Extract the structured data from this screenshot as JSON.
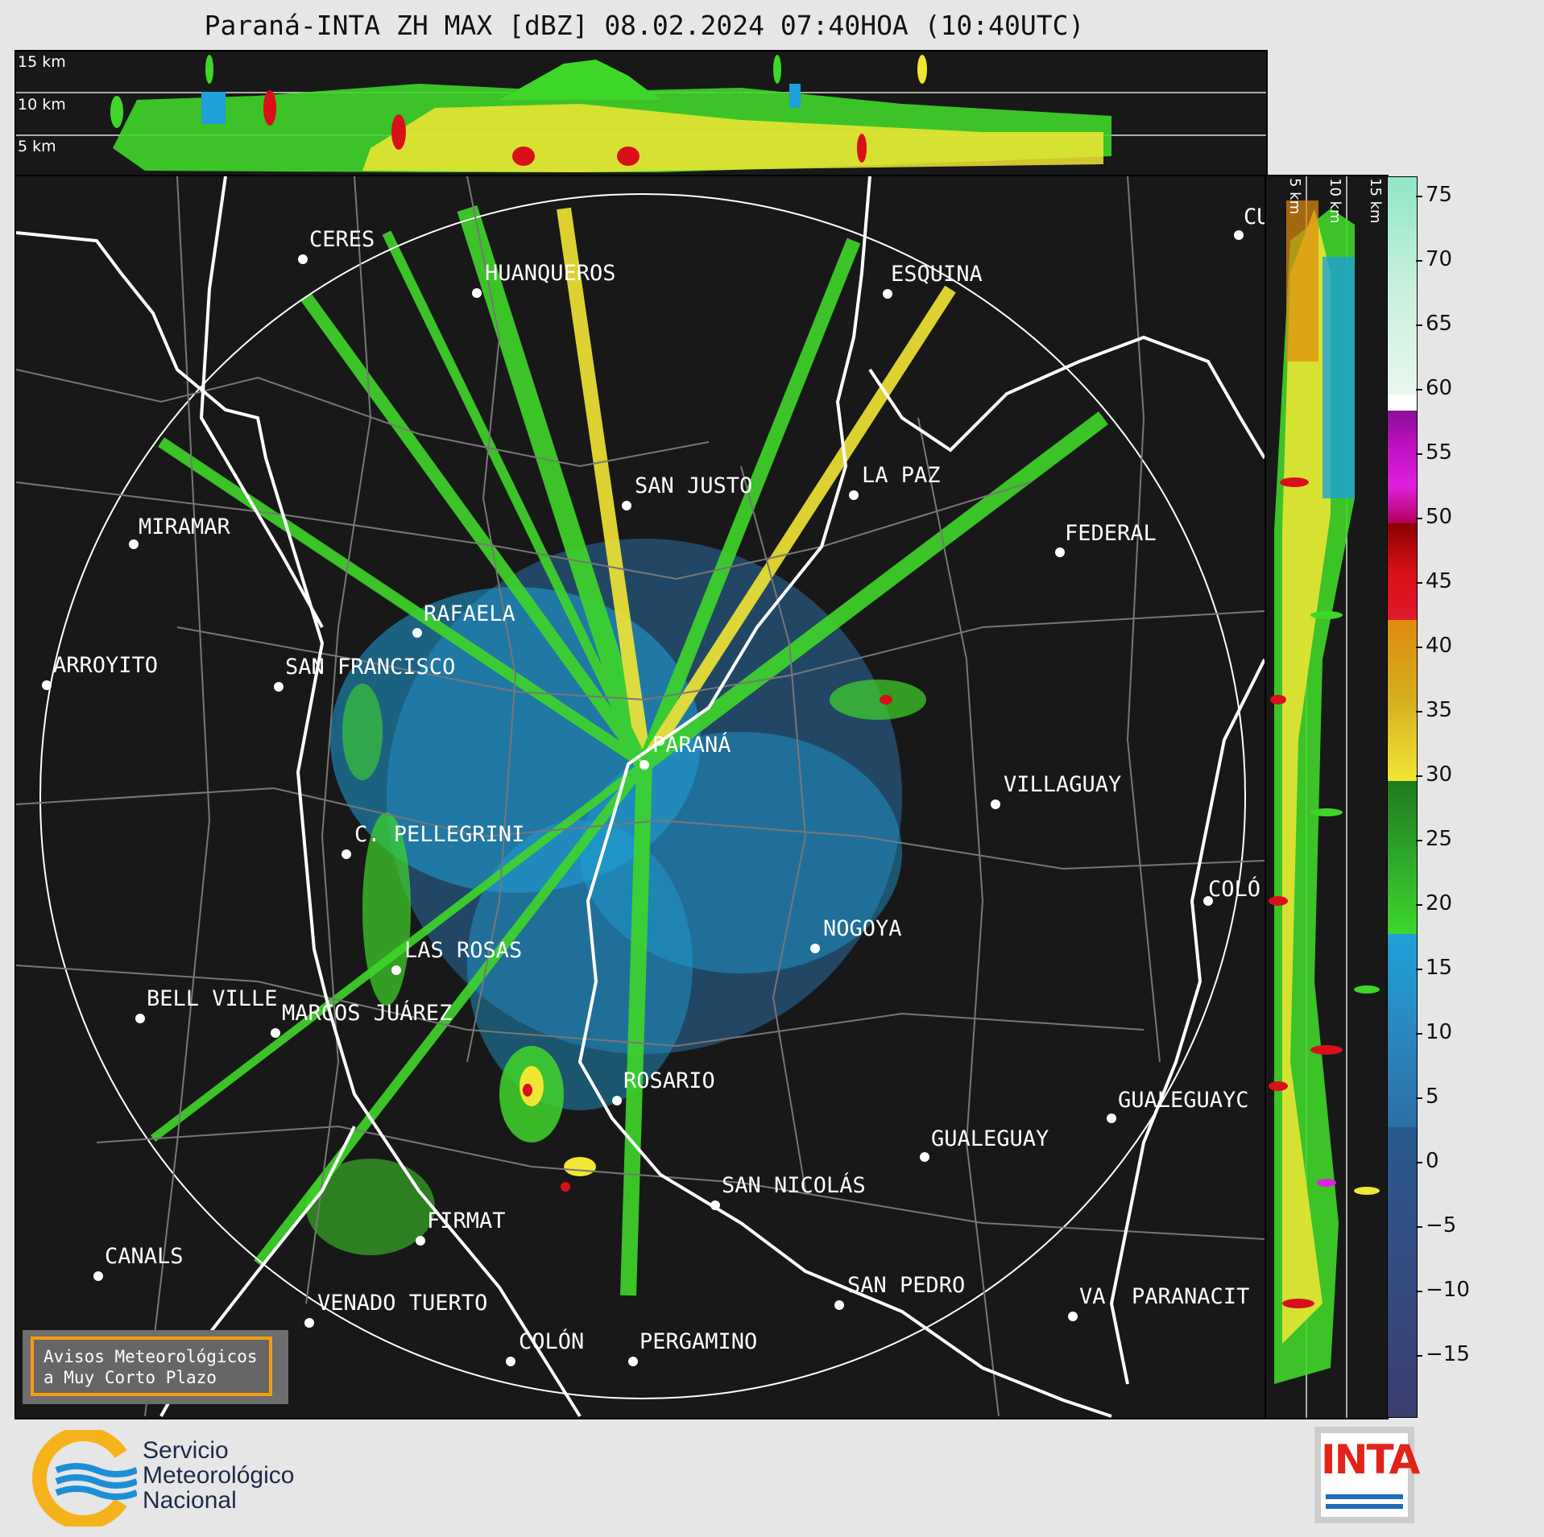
{
  "title": "Paraná-INTA ZH MAX [dBZ] 08.02.2024 07:40HOA (10:40UTC)",
  "altitude_labels": [
    "15 km",
    "10 km",
    "5 km"
  ],
  "cities": [
    {
      "name": "CERES"
    },
    {
      "name": "HUANQUEROS"
    },
    {
      "name": "ESQUINA"
    },
    {
      "name": "CU"
    },
    {
      "name": "SAN JUSTO"
    },
    {
      "name": "LA PAZ"
    },
    {
      "name": "MIRAMAR"
    },
    {
      "name": "FEDERAL"
    },
    {
      "name": "RAFAELA"
    },
    {
      "name": "ARROYITO"
    },
    {
      "name": "SAN FRANCISCO"
    },
    {
      "name": "PARANÁ"
    },
    {
      "name": "VILLAGUAY"
    },
    {
      "name": "C. PELLEGRINI"
    },
    {
      "name": "COLÓ"
    },
    {
      "name": "NOGOYA"
    },
    {
      "name": "LAS ROSAS"
    },
    {
      "name": "BELL VILLE"
    },
    {
      "name": "MARCOS JUÁREZ"
    },
    {
      "name": "ROSARIO"
    },
    {
      "name": "GUALEGUAYC"
    },
    {
      "name": "GUALEGUAY"
    },
    {
      "name": "SAN NICOLÁS"
    },
    {
      "name": "FIRMAT"
    },
    {
      "name": "CANALS"
    },
    {
      "name": "SAN PEDRO"
    },
    {
      "name": "VENADO TUERTO"
    },
    {
      "name": "VA. PARANACIT"
    },
    {
      "name": "COLÓN"
    },
    {
      "name": "PERGAMINO"
    }
  ],
  "colorbar": {
    "unit": "dBZ",
    "tick_labels": [
      "75",
      "70",
      "65",
      "60",
      "55",
      "50",
      "45",
      "40",
      "35",
      "30",
      "25",
      "20",
      "15",
      "10",
      "5",
      "0",
      "−5",
      "−10",
      "−15"
    ],
    "colors": {
      "veryweak": "#3a3f6e",
      "weak": "#2c6fa6",
      "light": "#1fa0d8",
      "green": "#3fd62a",
      "darkgreen": "#1e7a1e",
      "yellow": "#f2e634",
      "orange": "#e08a0d",
      "red": "#d8101a",
      "darkred": "#8a0000",
      "magenta": "#e020e0",
      "purple": "#8a109a",
      "white": "#ffffff",
      "mint": "#8fe6c6"
    }
  },
  "avisos": {
    "line1": "Avisos Meteorológicos",
    "line2": "a Muy Corto Plazo"
  },
  "smn": {
    "line1": "Servicio",
    "line2": "Meteorológico",
    "line3": "Nacional"
  },
  "inta": {
    "text": "INTA"
  }
}
